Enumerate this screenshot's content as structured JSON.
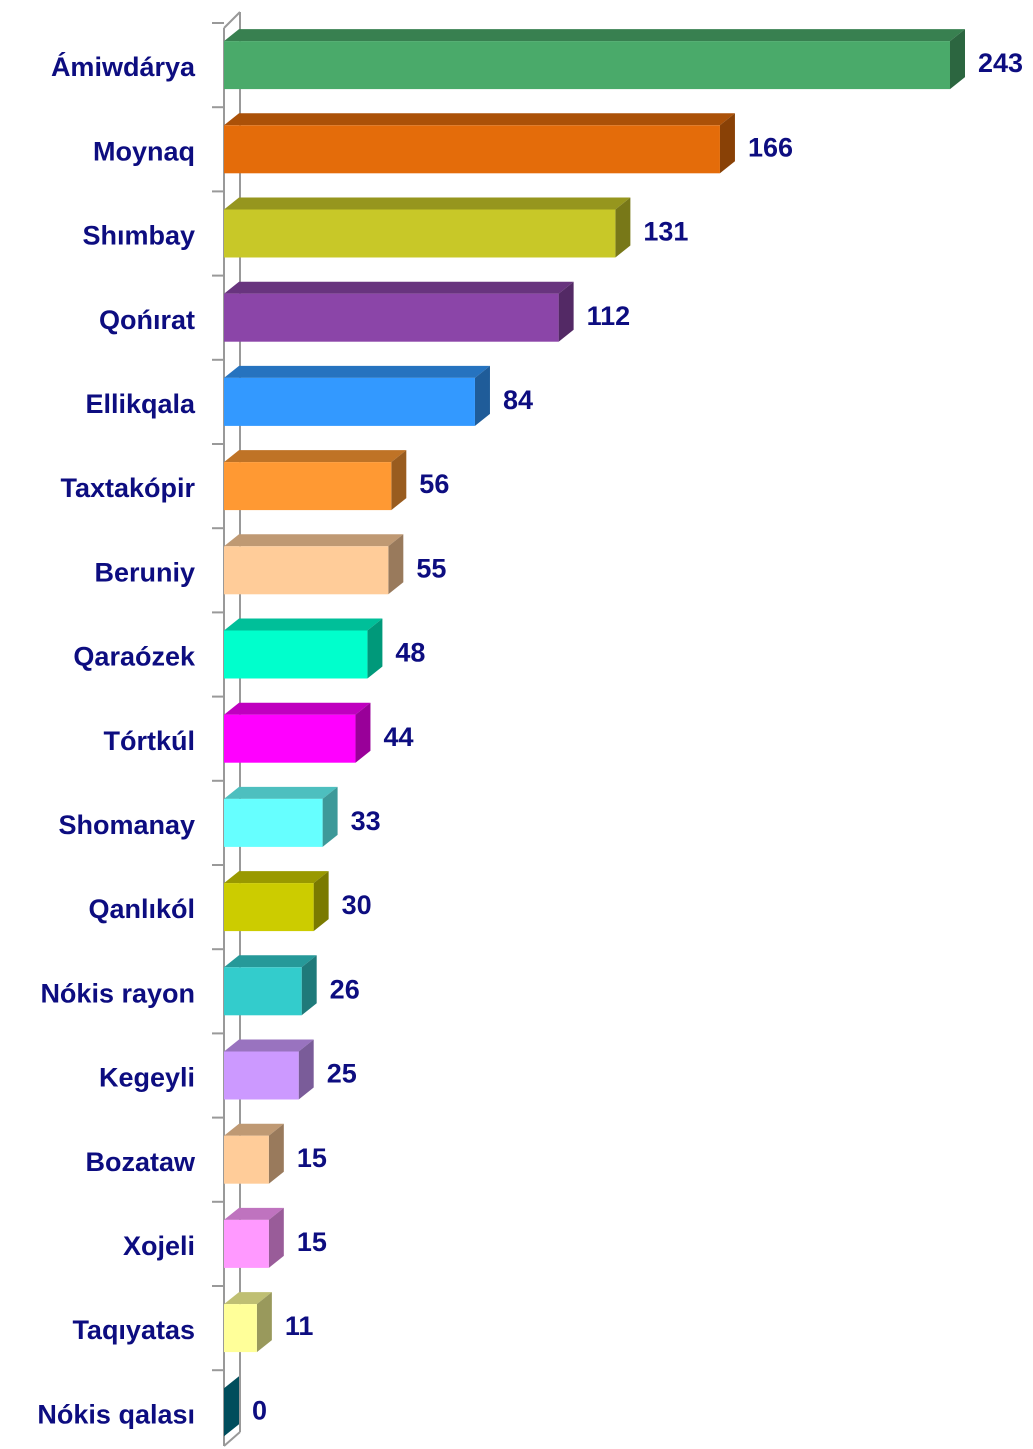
{
  "chart_data": {
    "type": "bar",
    "orientation": "horizontal",
    "categories": [
      "Ámiwdárya",
      "Moynaq",
      "Shımbay",
      "Qońırat",
      "Ellikqala",
      "Taxtakópir",
      "Beruniy",
      "Qaraózek",
      "Tórtkúl",
      "Shomanay",
      "Qanlıkól",
      "Nókis rayon",
      "Kegeyli",
      "Bozataw",
      "Xojeli",
      "Taqıyatas",
      "Nókis qalası"
    ],
    "values": [
      243,
      166,
      131,
      112,
      84,
      56,
      55,
      48,
      44,
      33,
      30,
      26,
      25,
      15,
      15,
      11,
      0
    ],
    "colors": [
      "#4aaa6a",
      "#e46c0a",
      "#c8c828",
      "#8b45a8",
      "#3399ff",
      "#ff9933",
      "#ffcc99",
      "#00ffcc",
      "#ff00ff",
      "#66ffff",
      "#cccc00",
      "#33cccc",
      "#cc99ff",
      "#ffcc99",
      "#ff99ff",
      "#ffff99",
      "#008099"
    ]
  }
}
